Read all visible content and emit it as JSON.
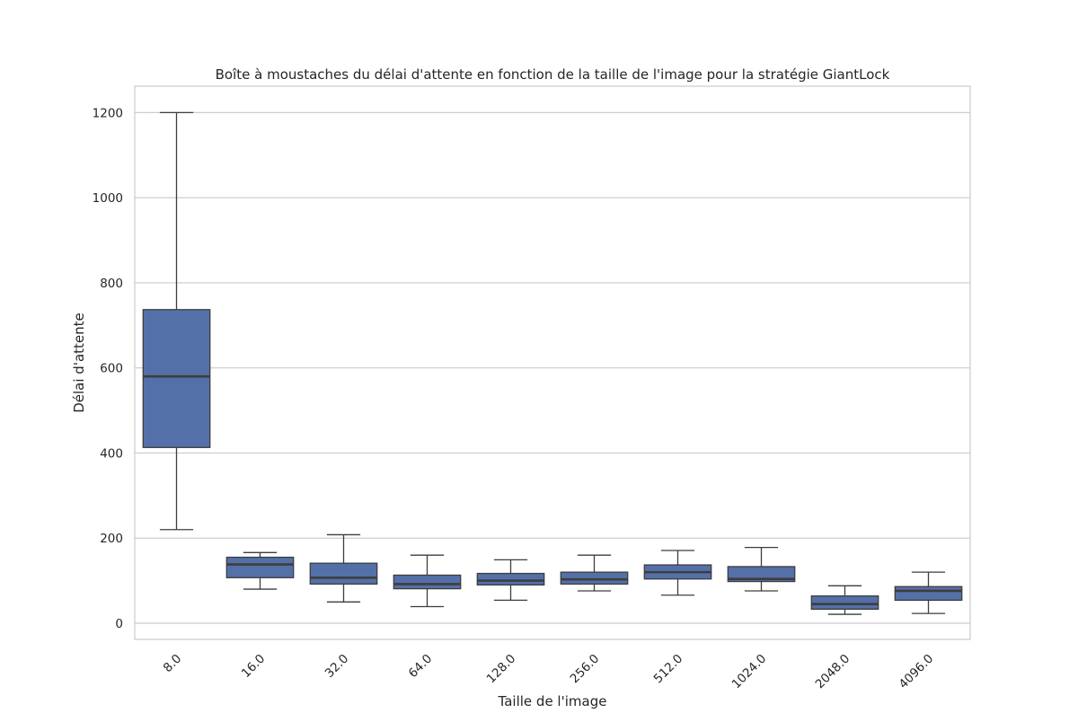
{
  "colors": {
    "box_fill": "#5470a8",
    "box_edge": "#3d3d3d",
    "median": "#3d3d3d",
    "grid": "#cccccc",
    "frame": "#cccccc",
    "background": "#ffffff"
  },
  "chart_data": {
    "type": "box",
    "title": "Boîte à moustaches du délai d'attente en fonction de la taille de l'image pour la stratégie GiantLock",
    "xlabel": "Taille de l'image",
    "ylabel": "Délai d'attente",
    "categories": [
      "8.0",
      "16.0",
      "32.0",
      "64.0",
      "128.0",
      "256.0",
      "512.0",
      "1024.0",
      "2048.0",
      "4096.0"
    ],
    "ylim": [
      -38,
      1262
    ],
    "yticks": [
      0,
      200,
      400,
      600,
      800,
      1000,
      1200
    ],
    "ytick_labels": [
      "0",
      "200",
      "400",
      "600",
      "800",
      "1000",
      "1200"
    ],
    "grid": true,
    "legend": "none",
    "boxes": [
      {
        "category": "8.0",
        "whisker_low": 220,
        "q1": 413,
        "median": 580,
        "q3": 737,
        "whisker_high": 1200
      },
      {
        "category": "16.0",
        "whisker_low": 80,
        "q1": 107,
        "median": 138,
        "q3": 155,
        "whisker_high": 166
      },
      {
        "category": "32.0",
        "whisker_low": 50,
        "q1": 92,
        "median": 107,
        "q3": 141,
        "whisker_high": 208
      },
      {
        "category": "64.0",
        "whisker_low": 39,
        "q1": 81,
        "median": 92,
        "q3": 113,
        "whisker_high": 160
      },
      {
        "category": "128.0",
        "whisker_low": 54,
        "q1": 90,
        "median": 100,
        "q3": 117,
        "whisker_high": 149
      },
      {
        "category": "256.0",
        "whisker_low": 76,
        "q1": 92,
        "median": 103,
        "q3": 120,
        "whisker_high": 160
      },
      {
        "category": "512.0",
        "whisker_low": 66,
        "q1": 104,
        "median": 120,
        "q3": 137,
        "whisker_high": 171
      },
      {
        "category": "1024.0",
        "whisker_low": 76,
        "q1": 98,
        "median": 104,
        "q3": 133,
        "whisker_high": 178
      },
      {
        "category": "2048.0",
        "whisker_low": 21,
        "q1": 33,
        "median": 45,
        "q3": 64,
        "whisker_high": 88
      },
      {
        "category": "4096.0",
        "whisker_low": 23,
        "q1": 54,
        "median": 76,
        "q3": 86,
        "whisker_high": 120
      }
    ]
  }
}
